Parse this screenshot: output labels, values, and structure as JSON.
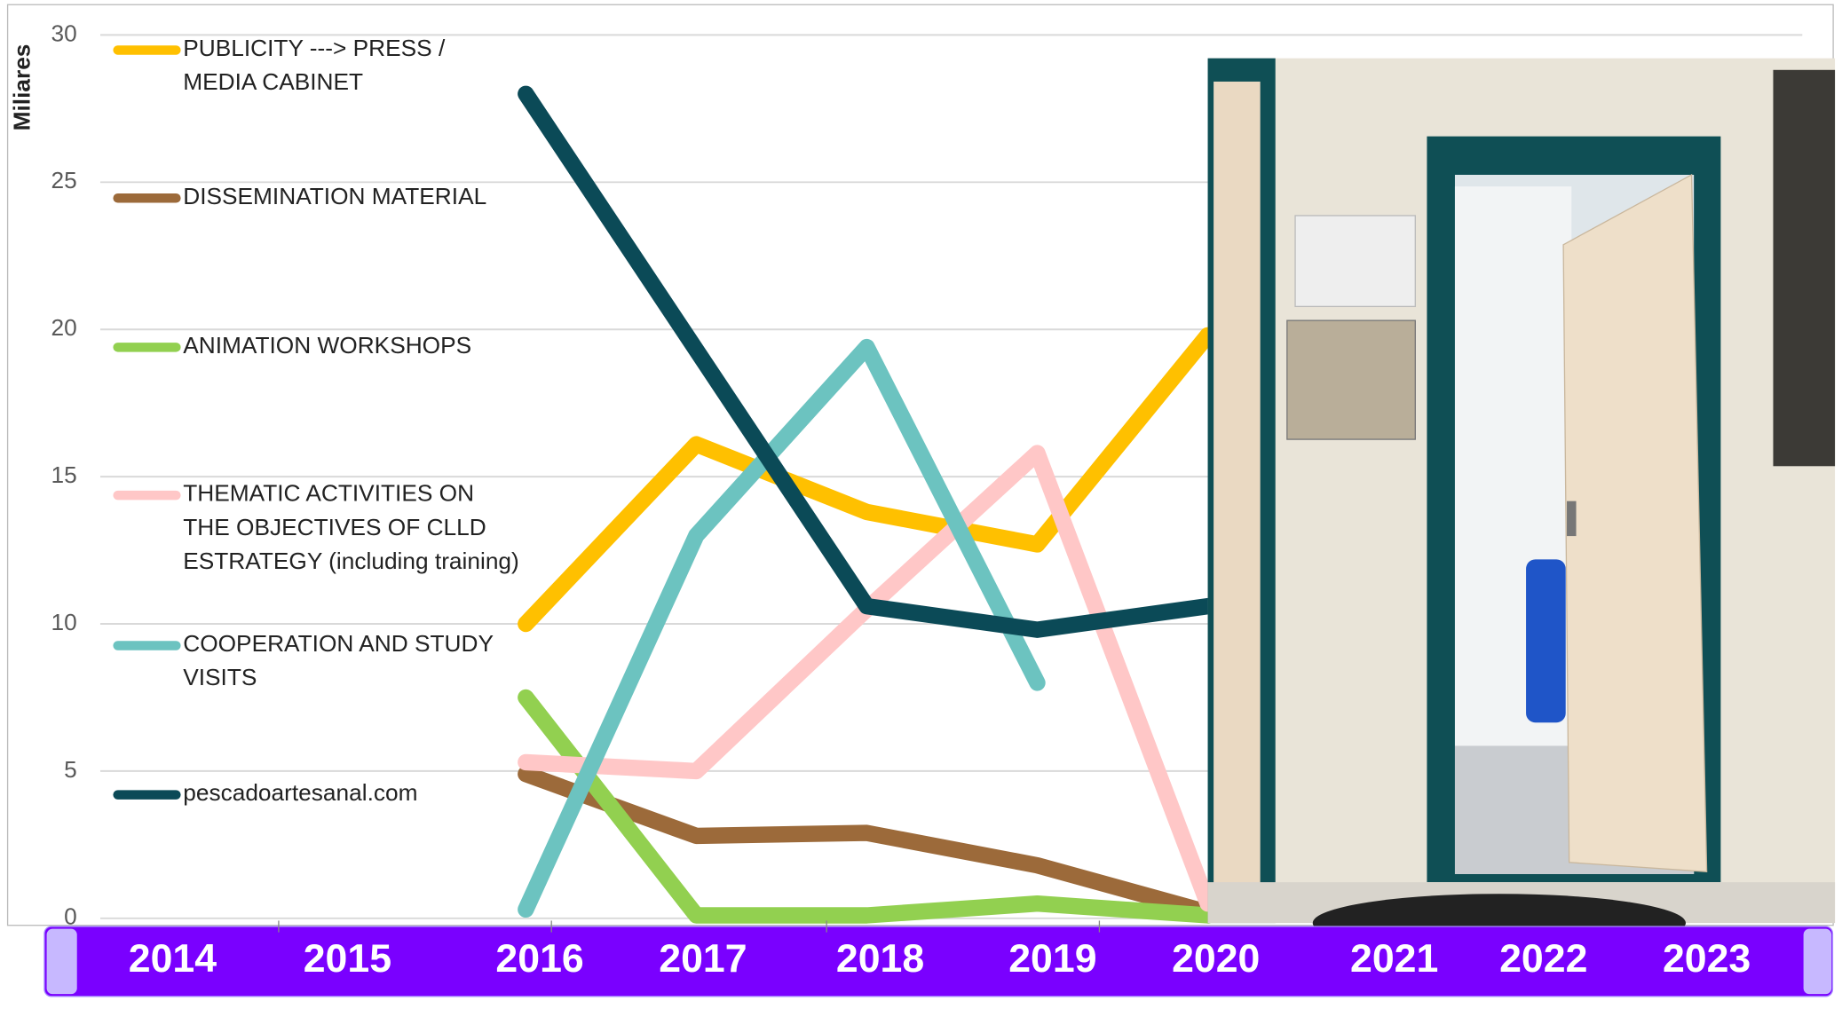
{
  "chart_data": {
    "type": "line",
    "y_label": "Miliares",
    "categories": [
      null,
      null,
      null,
      null,
      null
    ],
    "ylim": [
      0,
      30
    ],
    "yticks": [
      0,
      5,
      10,
      15,
      20,
      25,
      30
    ],
    "grid": true,
    "series": [
      {
        "name": "PUBLICITY ---> PRESS / MEDIA CABINET",
        "color": "#FFC000",
        "values": [
          10,
          16.1,
          13.8,
          12.7,
          19.8
        ]
      },
      {
        "name": "DISSEMINATION MATERIAL",
        "color": "#9C6A3A",
        "values": [
          4.9,
          2.8,
          2.9,
          1.8,
          0.2
        ]
      },
      {
        "name": "ANIMATION WORKSHOPS",
        "color": "#92D050",
        "values": [
          7.5,
          0.1,
          0.1,
          0.5,
          0.1
        ]
      },
      {
        "name": "THEMATIC ACTIVITIES ON THE OBJECTIVES OF CLLD ESTRATEGY (including training)",
        "color": "#FFC7C7",
        "values": [
          5.3,
          5.0,
          10.5,
          15.8,
          0.5
        ]
      },
      {
        "name": "COOPERATION AND STUDY VISITS",
        "color": "#6CC3C0",
        "values": [
          0.3,
          13.0,
          19.4,
          8.0,
          null
        ]
      },
      {
        "name": "pescadoartesanal.com",
        "color": "#0B4A57",
        "values": [
          28.0,
          19.3,
          10.6,
          9.8,
          10.6
        ]
      }
    ]
  },
  "timeline": {
    "years": [
      "2014",
      "2015",
      "2016",
      "2017",
      "2018",
      "2019",
      "2020",
      "2021",
      "2022",
      "2023"
    ]
  }
}
